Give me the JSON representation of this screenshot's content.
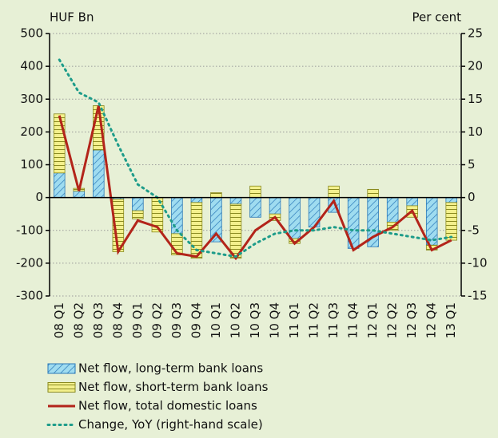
{
  "chart_data": {
    "type": "bar",
    "y_label": "HUF Bn",
    "y2_label": "Per cent",
    "categories": [
      "08 Q1",
      "08 Q2",
      "08 Q3",
      "08 Q4",
      "09 Q1",
      "09 Q2",
      "09 Q3",
      "09 Q4",
      "10 Q1",
      "10 Q2",
      "10 Q3",
      "10 Q4",
      "11 Q1",
      "11 Q2",
      "11 Q3",
      "11 Q4",
      "12 Q1",
      "12 Q2",
      "12 Q3",
      "12 Q4",
      "13 Q1"
    ],
    "ylim": [
      -300,
      500
    ],
    "yticks": [
      -300,
      -200,
      -100,
      0,
      100,
      200,
      300,
      400,
      500
    ],
    "y2lim": [
      -15,
      25
    ],
    "y2ticks": [
      -15,
      -10,
      -5,
      0,
      5,
      10,
      15,
      20,
      25
    ],
    "grid": true,
    "series": [
      {
        "name": "Net flow, long-term bank loans",
        "type": "bar",
        "color": "#9fdcf0",
        "values": [
          75,
          20,
          145,
          -5,
          -40,
          0,
          -110,
          -15,
          -135,
          -20,
          -60,
          -50,
          -125,
          -90,
          -45,
          -155,
          -150,
          -75,
          -25,
          -145,
          -15
        ]
      },
      {
        "name": "Net flow, short-term bank loans",
        "type": "bar",
        "color": "#f3f08c",
        "values": [
          180,
          8,
          135,
          -160,
          -25,
          -105,
          -65,
          -170,
          15,
          -165,
          35,
          -20,
          -15,
          0,
          35,
          0,
          25,
          -25,
          -35,
          -15,
          -115
        ]
      },
      {
        "name": "Net flow, total domestic loans",
        "type": "line",
        "color": "#b3241a",
        "values": [
          250,
          20,
          280,
          -165,
          -70,
          -90,
          -170,
          -180,
          -110,
          -185,
          -100,
          -60,
          -140,
          -90,
          -10,
          -160,
          -120,
          -90,
          -40,
          -160,
          -130
        ]
      },
      {
        "name": "Change, YoY (right-hand scale)",
        "type": "dotted",
        "axis": "y2",
        "color": "#1e9c8a",
        "values": [
          21,
          16,
          14.5,
          8,
          2,
          0,
          -5,
          -8,
          -8.5,
          -9,
          -7,
          -5.5,
          -5,
          -5,
          -4.5,
          -5,
          -5,
          -5.5,
          -6,
          -6.5,
          -6
        ]
      }
    ]
  }
}
